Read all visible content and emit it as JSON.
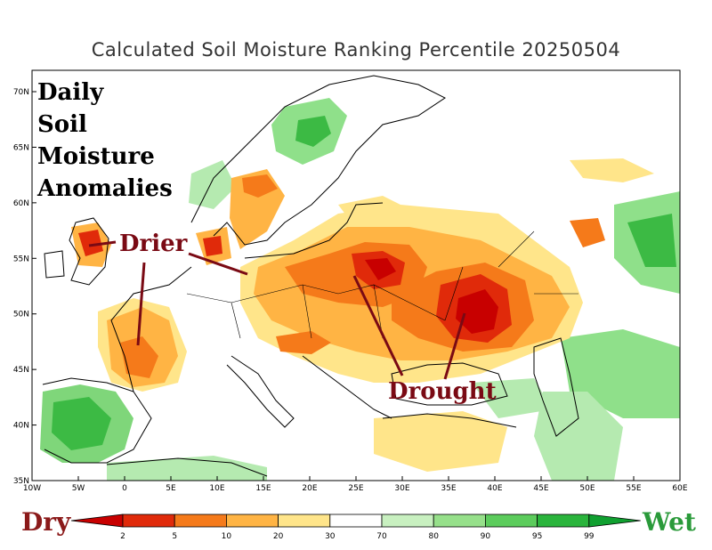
{
  "title": "Calculated Soil Moisture Ranking Percentile 20250504",
  "overlay": {
    "heading_lines": [
      "Daily",
      "Soil",
      "Moisture",
      "Anomalies"
    ],
    "drier_label": "Drier",
    "drought_label": "Drought"
  },
  "axes": {
    "lat_labels": [
      "70N",
      "65N",
      "60N",
      "55N",
      "50N",
      "45N",
      "40N",
      "35N"
    ],
    "lon_labels": [
      "10W",
      "5W",
      "0",
      "5E",
      "10E",
      "15E",
      "20E",
      "25E",
      "30E",
      "35E",
      "40E",
      "45E",
      "50E",
      "55E",
      "60E"
    ]
  },
  "legend": {
    "dry_label": "Dry",
    "wet_label": "Wet",
    "thresholds": [
      "2",
      "5",
      "10",
      "20",
      "30",
      "70",
      "80",
      "90",
      "95",
      "99"
    ],
    "colors": [
      "#c80000",
      "#e02a0a",
      "#f57a1a",
      "#ffb444",
      "#ffe58a",
      "#ffffff",
      "#c8f0c0",
      "#96e08a",
      "#5ccc5c",
      "#2ab43c",
      "#10a030"
    ],
    "dry_color": "#8b1a1a",
    "wet_color": "#2a9a3a"
  },
  "annotation_color": "#7a0a14"
}
